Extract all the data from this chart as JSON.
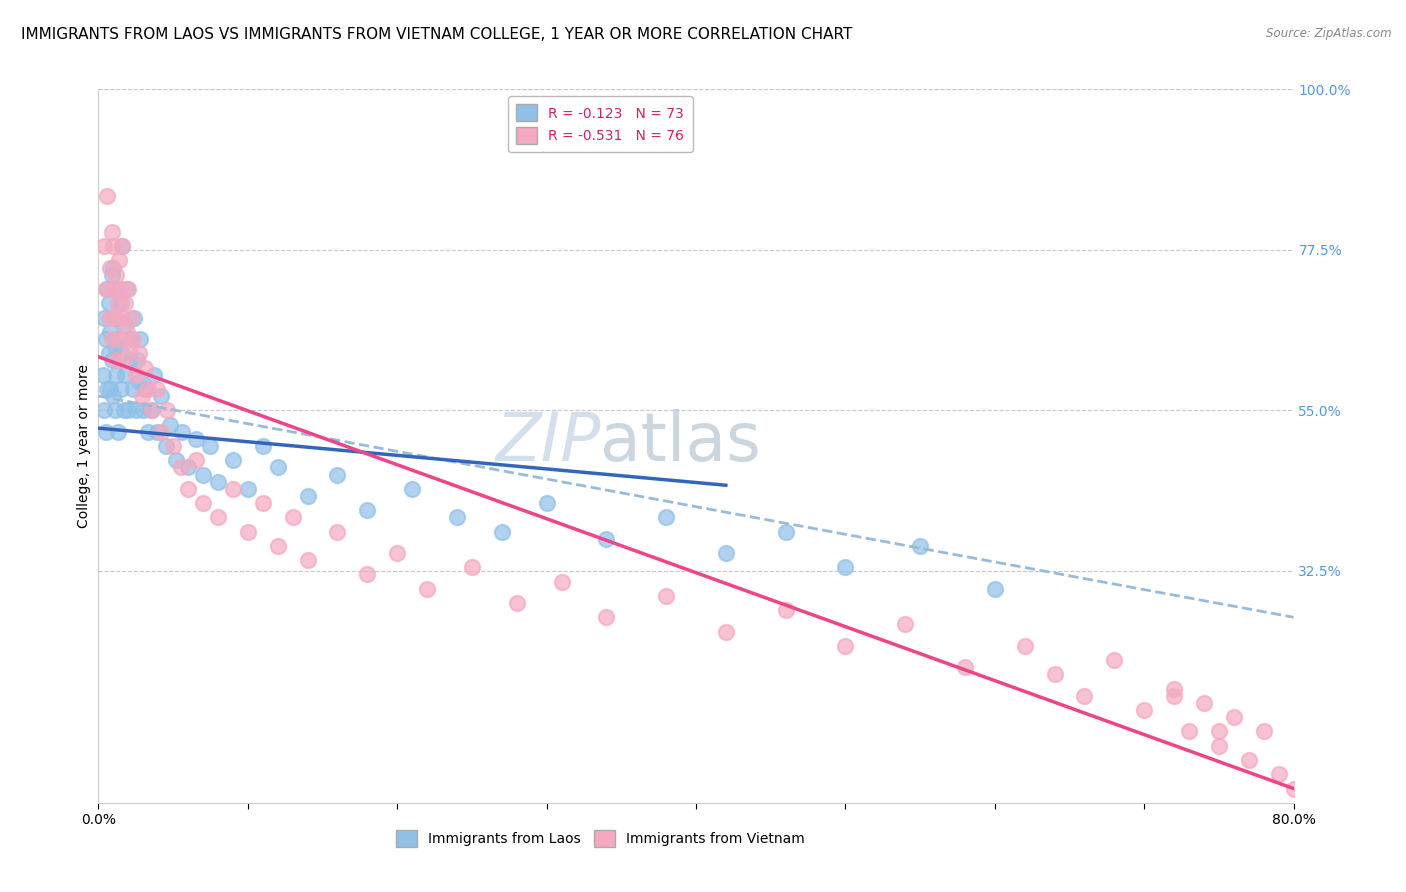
{
  "title": "IMMIGRANTS FROM LAOS VS IMMIGRANTS FROM VIETNAM COLLEGE, 1 YEAR OR MORE CORRELATION CHART",
  "source": "Source: ZipAtlas.com",
  "ylabel": "College, 1 year or more",
  "right_yticks": [
    "100.0%",
    "77.5%",
    "55.0%",
    "32.5%"
  ],
  "right_ytick_vals": [
    1.0,
    0.775,
    0.55,
    0.325
  ],
  "xmin": 0.0,
  "xmax": 0.8,
  "ymin": 0.0,
  "ymax": 1.0,
  "laos_color": "#90c0e8",
  "vietnam_color": "#f5a8c0",
  "laos_trendline_color": "#3366bb",
  "vietnam_trendline_color": "#ee4488",
  "trendline_dashed_color": "#99bbd8",
  "background_color": "#ffffff",
  "watermark_zip": "ZIP",
  "watermark_atlas": "atlas",
  "grid_color": "#c8c8c8",
  "tick_color": "#5599dd",
  "title_fontsize": 11,
  "axis_label_fontsize": 10,
  "tick_fontsize": 10,
  "watermark_fontsize": 48,
  "watermark_color_zip": "#c8d8e8",
  "watermark_color_atlas": "#c0ccd8",
  "laos_R": -0.123,
  "laos_N": 73,
  "vietnam_R": -0.531,
  "vietnam_N": 76,
  "laos_x": [
    0.003,
    0.004,
    0.004,
    0.005,
    0.005,
    0.006,
    0.006,
    0.007,
    0.007,
    0.008,
    0.008,
    0.009,
    0.009,
    0.01,
    0.01,
    0.011,
    0.011,
    0.012,
    0.012,
    0.013,
    0.013,
    0.014,
    0.015,
    0.015,
    0.016,
    0.016,
    0.017,
    0.018,
    0.018,
    0.019,
    0.02,
    0.021,
    0.022,
    0.023,
    0.024,
    0.025,
    0.026,
    0.027,
    0.028,
    0.03,
    0.031,
    0.033,
    0.035,
    0.037,
    0.039,
    0.042,
    0.045,
    0.048,
    0.052,
    0.056,
    0.06,
    0.065,
    0.07,
    0.075,
    0.08,
    0.09,
    0.1,
    0.11,
    0.12,
    0.14,
    0.16,
    0.18,
    0.21,
    0.24,
    0.27,
    0.3,
    0.34,
    0.38,
    0.42,
    0.46,
    0.5,
    0.55,
    0.6
  ],
  "laos_y": [
    0.6,
    0.55,
    0.68,
    0.52,
    0.65,
    0.72,
    0.58,
    0.63,
    0.7,
    0.58,
    0.66,
    0.74,
    0.62,
    0.57,
    0.75,
    0.64,
    0.55,
    0.68,
    0.6,
    0.72,
    0.52,
    0.65,
    0.58,
    0.7,
    0.63,
    0.78,
    0.55,
    0.67,
    0.6,
    0.72,
    0.55,
    0.62,
    0.65,
    0.58,
    0.68,
    0.55,
    0.62,
    0.59,
    0.65,
    0.55,
    0.58,
    0.52,
    0.55,
    0.6,
    0.52,
    0.57,
    0.5,
    0.53,
    0.48,
    0.52,
    0.47,
    0.51,
    0.46,
    0.5,
    0.45,
    0.48,
    0.44,
    0.5,
    0.47,
    0.43,
    0.46,
    0.41,
    0.44,
    0.4,
    0.38,
    0.42,
    0.37,
    0.4,
    0.35,
    0.38,
    0.33,
    0.36,
    0.3
  ],
  "vietnam_x": [
    0.004,
    0.005,
    0.006,
    0.007,
    0.008,
    0.009,
    0.009,
    0.01,
    0.01,
    0.011,
    0.012,
    0.012,
    0.013,
    0.014,
    0.014,
    0.015,
    0.016,
    0.016,
    0.017,
    0.018,
    0.019,
    0.02,
    0.021,
    0.022,
    0.023,
    0.025,
    0.027,
    0.029,
    0.031,
    0.033,
    0.036,
    0.039,
    0.042,
    0.046,
    0.05,
    0.055,
    0.06,
    0.065,
    0.07,
    0.08,
    0.09,
    0.1,
    0.11,
    0.12,
    0.13,
    0.14,
    0.16,
    0.18,
    0.2,
    0.22,
    0.25,
    0.28,
    0.31,
    0.34,
    0.38,
    0.42,
    0.46,
    0.5,
    0.54,
    0.58,
    0.62,
    0.64,
    0.66,
    0.68,
    0.7,
    0.72,
    0.73,
    0.74,
    0.75,
    0.76,
    0.77,
    0.78,
    0.79,
    0.8,
    0.75,
    0.72
  ],
  "vietnam_y": [
    0.78,
    0.72,
    0.85,
    0.68,
    0.75,
    0.8,
    0.65,
    0.72,
    0.78,
    0.68,
    0.74,
    0.62,
    0.7,
    0.76,
    0.65,
    0.72,
    0.68,
    0.78,
    0.62,
    0.7,
    0.66,
    0.72,
    0.64,
    0.68,
    0.65,
    0.6,
    0.63,
    0.57,
    0.61,
    0.58,
    0.55,
    0.58,
    0.52,
    0.55,
    0.5,
    0.47,
    0.44,
    0.48,
    0.42,
    0.4,
    0.44,
    0.38,
    0.42,
    0.36,
    0.4,
    0.34,
    0.38,
    0.32,
    0.35,
    0.3,
    0.33,
    0.28,
    0.31,
    0.26,
    0.29,
    0.24,
    0.27,
    0.22,
    0.25,
    0.19,
    0.22,
    0.18,
    0.15,
    0.2,
    0.13,
    0.16,
    0.1,
    0.14,
    0.08,
    0.12,
    0.06,
    0.1,
    0.04,
    0.02,
    0.1,
    0.15
  ]
}
